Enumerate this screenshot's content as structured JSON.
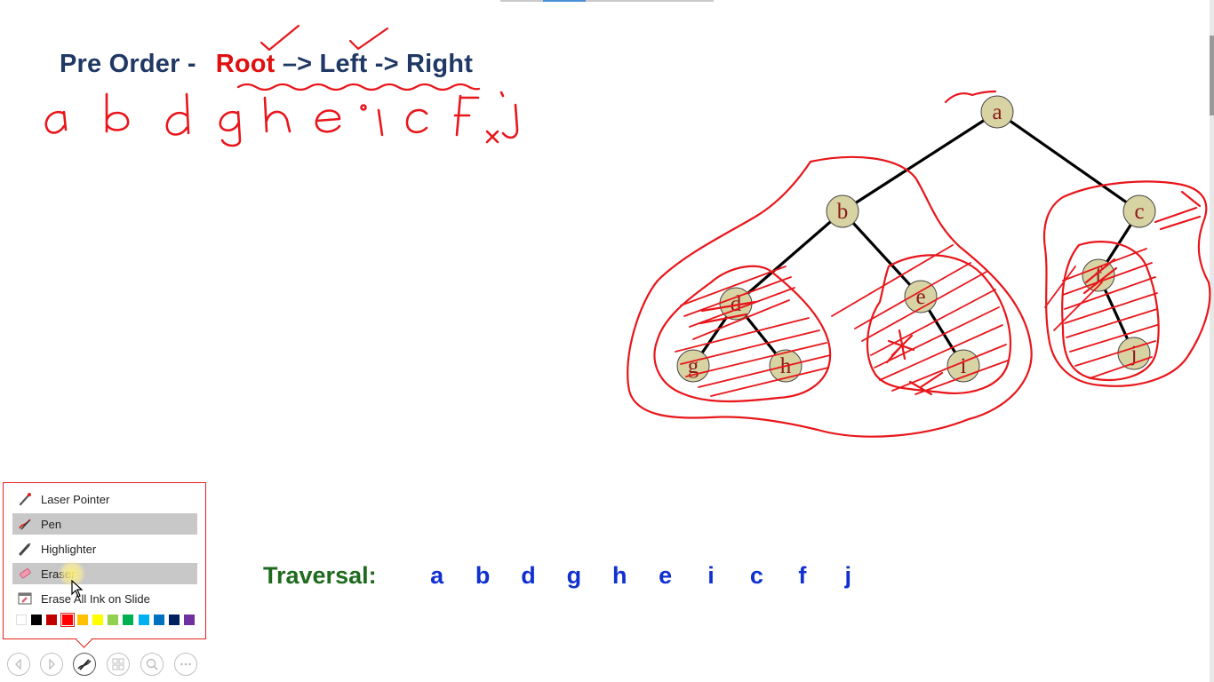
{
  "slide": {
    "heading": {
      "prefix": "Pre Order -",
      "root": "Root",
      "rest": "–> Left -> Right"
    },
    "traversal_label": "Traversal:",
    "traversal_sequence": [
      "a",
      "b",
      "d",
      "g",
      "h",
      "e",
      "i",
      "c",
      "f",
      "j"
    ],
    "tree": {
      "nodes": [
        {
          "id": "a",
          "label": "a"
        },
        {
          "id": "b",
          "label": "b"
        },
        {
          "id": "c",
          "label": "c"
        },
        {
          "id": "d",
          "label": "d"
        },
        {
          "id": "e",
          "label": "e"
        },
        {
          "id": "f",
          "label": "f"
        },
        {
          "id": "g",
          "label": "g"
        },
        {
          "id": "h",
          "label": "h"
        },
        {
          "id": "i",
          "label": "i"
        },
        {
          "id": "j",
          "label": "j"
        }
      ],
      "edges": [
        [
          "a",
          "b"
        ],
        [
          "a",
          "c"
        ],
        [
          "b",
          "d"
        ],
        [
          "b",
          "e"
        ],
        [
          "c",
          "f"
        ],
        [
          "d",
          "g"
        ],
        [
          "d",
          "h"
        ],
        [
          "e",
          "i"
        ],
        [
          "f",
          "j"
        ]
      ],
      "node_fill": "#d8d3a2",
      "label_color": "#8b1a1a"
    }
  },
  "ink": {
    "color": "#e8161b",
    "handwritten_text": "a b d g h e i c F j"
  },
  "pen_menu": {
    "items": [
      {
        "label": "Laser Pointer",
        "icon": "laser-pointer-icon",
        "selected": false
      },
      {
        "label": "Pen",
        "icon": "pen-icon",
        "selected": true
      },
      {
        "label": "Highlighter",
        "icon": "highlighter-icon",
        "selected": false
      },
      {
        "label": "Eraser",
        "icon": "eraser-icon",
        "selected": true
      },
      {
        "label": "Erase All Ink on Slide",
        "icon": "erase-all-icon",
        "selected": false
      }
    ],
    "colors": [
      "#ffffff",
      "#000000",
      "#c00000",
      "#ff0000",
      "#ffc000",
      "#ffff00",
      "#92d050",
      "#00b050",
      "#00b0f0",
      "#0070c0",
      "#002060",
      "#7030a0"
    ],
    "active_color": "#ff0000"
  },
  "toolbar": {
    "buttons": [
      {
        "name": "previous-button",
        "icon": "previous-icon"
      },
      {
        "name": "next-button",
        "icon": "next-icon"
      },
      {
        "name": "pen-tools-button",
        "icon": "pen-tools-icon",
        "active": true
      },
      {
        "name": "see-all-slides-button",
        "icon": "slides-icon"
      },
      {
        "name": "zoom-button",
        "icon": "zoom-icon"
      },
      {
        "name": "more-options-button",
        "icon": "more-icon"
      }
    ]
  }
}
